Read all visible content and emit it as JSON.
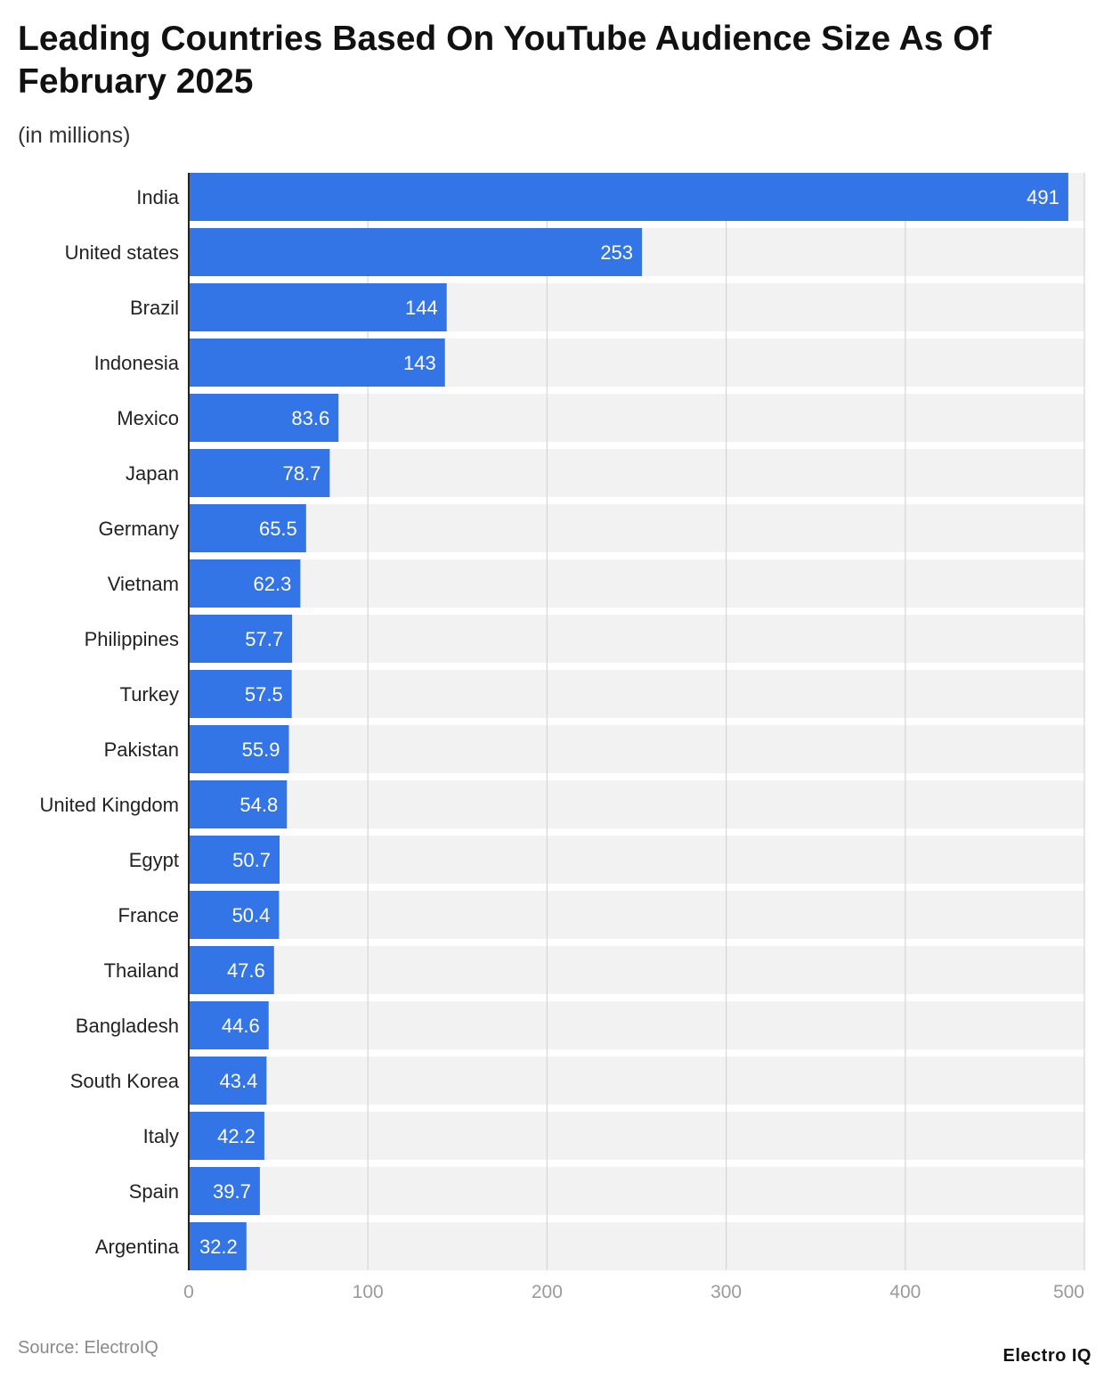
{
  "chart_data": {
    "type": "bar",
    "orientation": "horizontal",
    "title": "Leading Countries Based On YouTube Audience Size As Of February 2025",
    "subtitle": "(in millions)",
    "categories": [
      "India",
      "United states",
      "Brazil",
      "Indonesia",
      "Mexico",
      "Japan",
      "Germany",
      "Vietnam",
      "Philippines",
      "Turkey",
      "Pakistan",
      "United Kingdom",
      "Egypt",
      "France",
      "Thailand",
      "Bangladesh",
      "South Korea",
      "Italy",
      "Spain",
      "Argentina"
    ],
    "values": [
      491,
      253,
      144,
      143,
      83.6,
      78.7,
      65.5,
      62.3,
      57.7,
      57.5,
      55.9,
      54.8,
      50.7,
      50.4,
      47.6,
      44.6,
      43.4,
      42.2,
      39.7,
      32.2
    ],
    "value_labels": [
      "491",
      "253",
      "144",
      "143",
      "83.6",
      "78.7",
      "65.5",
      "62.3",
      "57.7",
      "57.5",
      "55.9",
      "54.8",
      "50.7",
      "50.4",
      "47.6",
      "44.6",
      "43.4",
      "42.2",
      "39.7",
      "32.2"
    ],
    "xlim": [
      0,
      500
    ],
    "x_ticks": [
      0,
      100,
      200,
      300,
      400,
      500
    ],
    "grid": true,
    "legend": "none",
    "bar_color": "#3374e6",
    "track_color": "#f2f2f2",
    "grid_color": "#d6d6d6"
  },
  "footer": {
    "source": "Source: ElectroIQ",
    "brand": "Electro IQ"
  }
}
